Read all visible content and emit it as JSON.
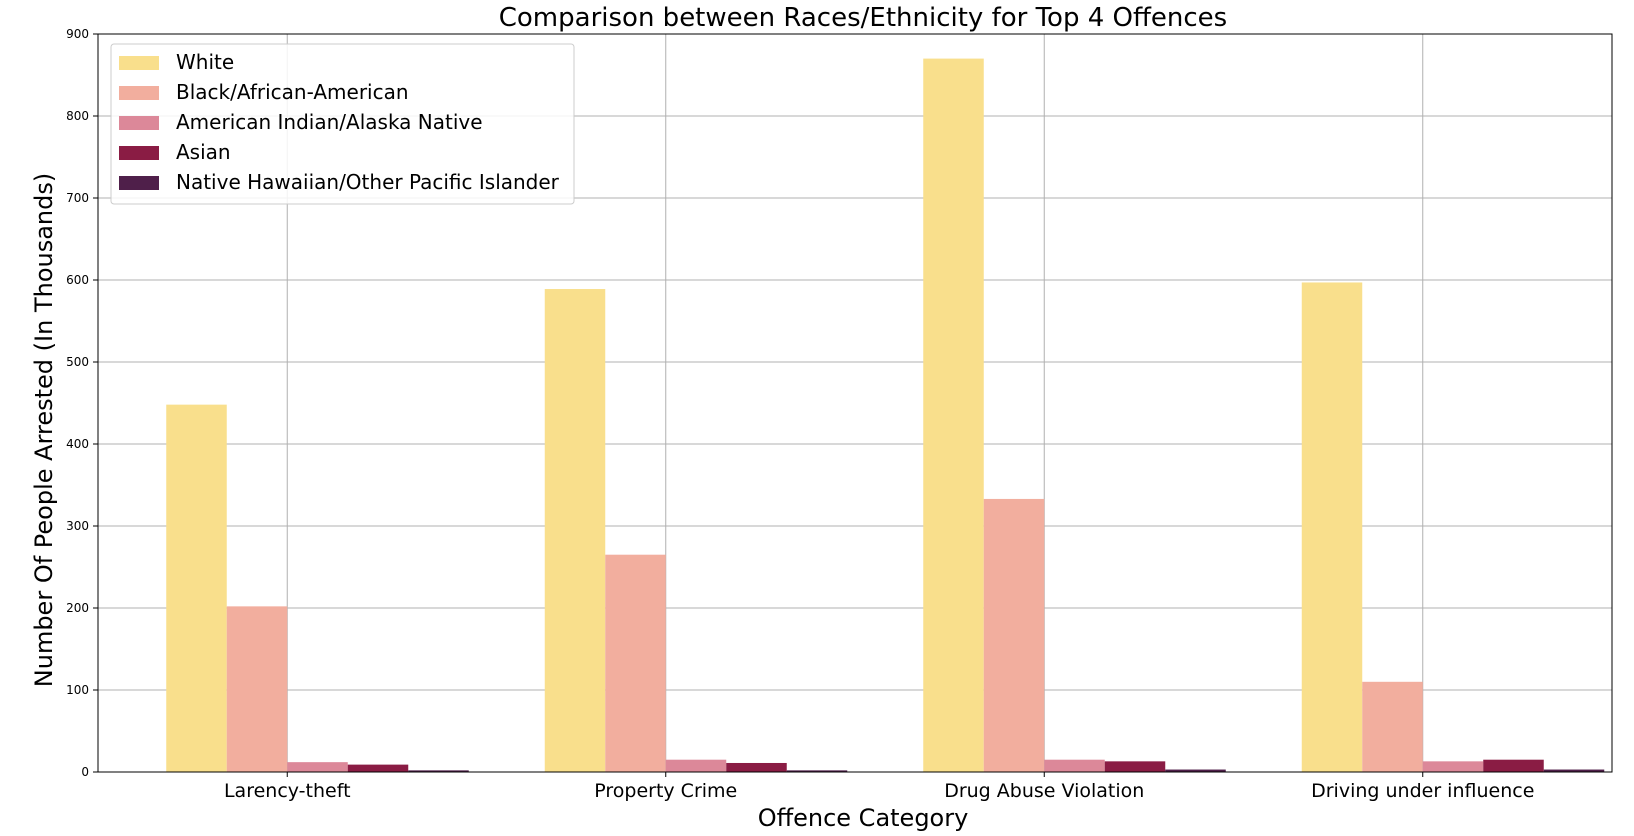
{
  "chart_data": {
    "type": "bar",
    "title": "Comparison between Races/Ethnicity for Top 4 Offences",
    "xlabel": "Offence Category",
    "ylabel": "Number Of People Arrested (In Thousands)",
    "ylim": [
      0,
      900
    ],
    "yticks": [
      "0",
      "100",
      "200",
      "300",
      "400",
      "500",
      "600",
      "700",
      "800",
      "900"
    ],
    "grid": true,
    "legend_position": "top-left",
    "categories": [
      "Larency-theft",
      "Property Crime",
      "Drug Abuse Violation",
      "Driving under influence"
    ],
    "series": [
      {
        "name": "White",
        "color": "#f9df8c",
        "values": [
          448,
          589,
          870,
          597
        ]
      },
      {
        "name": "Black/African-American",
        "color": "#f2ae9e",
        "values": [
          202,
          265,
          333,
          110
        ]
      },
      {
        "name": "American Indian/Alaska Native",
        "color": "#dc8899",
        "values": [
          12,
          15,
          15,
          13
        ]
      },
      {
        "name": "Asian",
        "color": "#8a1c44",
        "values": [
          9,
          11,
          13,
          15
        ]
      },
      {
        "name": "Native Hawaiian/Other Pacific Islander",
        "color": "#4f1f4a",
        "values": [
          2,
          2,
          3,
          3
        ]
      }
    ]
  }
}
